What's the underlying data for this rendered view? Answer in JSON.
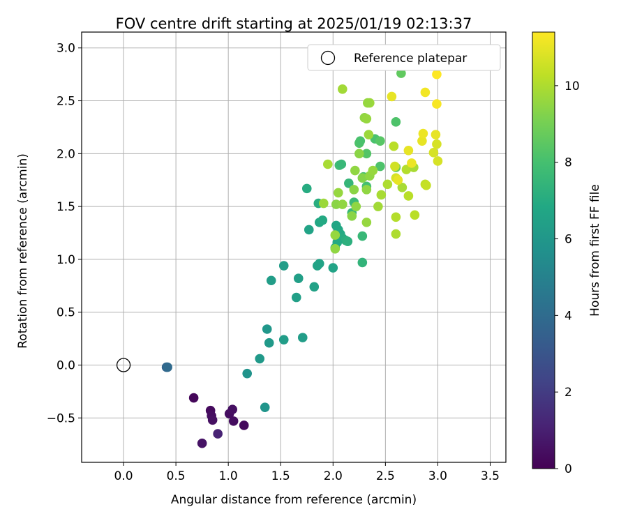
{
  "chart_data": {
    "type": "scatter",
    "title": "FOV centre drift starting at 2025/01/19 02:13:37",
    "xlabel": "Angular distance from reference (arcmin)",
    "ylabel": "Rotation from reference (arcmin)",
    "xlim": [
      -0.4,
      3.65
    ],
    "ylim": [
      -0.92,
      3.15
    ],
    "xticks": [
      "0.0",
      "0.5",
      "1.0",
      "1.5",
      "2.0",
      "2.5",
      "3.0",
      "3.5"
    ],
    "yticks": [
      "−0.5",
      "0.0",
      "0.5",
      "1.0",
      "1.5",
      "2.0",
      "2.5",
      "3.0"
    ],
    "grid": true,
    "legend": {
      "placement": "upper right",
      "label": "Reference platepar"
    },
    "reference_point": {
      "x": 0.0,
      "y": 0.0
    },
    "colorbar": {
      "label": "Hours from first FF file",
      "range": [
        0,
        11.4
      ],
      "ticks": [
        "0",
        "2",
        "4",
        "6",
        "8",
        "10"
      ],
      "colormap": "viridis"
    },
    "points": [
      {
        "x": 0.41,
        "y": -0.02,
        "h": 3.6
      },
      {
        "x": 0.42,
        "y": -0.02,
        "h": 3.9
      },
      {
        "x": 0.67,
        "y": -0.31,
        "h": 0.2
      },
      {
        "x": 0.83,
        "y": -0.43,
        "h": 0.3
      },
      {
        "x": 0.84,
        "y": -0.48,
        "h": 0.4
      },
      {
        "x": 0.85,
        "y": -0.52,
        "h": 0.5
      },
      {
        "x": 0.75,
        "y": -0.74,
        "h": 0.6
      },
      {
        "x": 0.9,
        "y": -0.65,
        "h": 1.1
      },
      {
        "x": 1.01,
        "y": -0.46,
        "h": 0.4
      },
      {
        "x": 1.04,
        "y": -0.42,
        "h": 0.5
      },
      {
        "x": 1.05,
        "y": -0.53,
        "h": 0.4
      },
      {
        "x": 1.15,
        "y": -0.57,
        "h": 0.3
      },
      {
        "x": 1.18,
        "y": -0.08,
        "h": 5.8
      },
      {
        "x": 1.35,
        "y": -0.4,
        "h": 5.9
      },
      {
        "x": 1.3,
        "y": 0.06,
        "h": 6.1
      },
      {
        "x": 1.37,
        "y": 0.34,
        "h": 6.0
      },
      {
        "x": 1.39,
        "y": 0.21,
        "h": 6.1
      },
      {
        "x": 1.53,
        "y": 0.24,
        "h": 6.3
      },
      {
        "x": 1.71,
        "y": 0.26,
        "h": 6.3
      },
      {
        "x": 1.41,
        "y": 0.8,
        "h": 6.3
      },
      {
        "x": 1.53,
        "y": 0.94,
        "h": 6.3
      },
      {
        "x": 1.65,
        "y": 0.64,
        "h": 6.4
      },
      {
        "x": 1.67,
        "y": 0.82,
        "h": 6.4
      },
      {
        "x": 1.82,
        "y": 0.74,
        "h": 6.5
      },
      {
        "x": 1.85,
        "y": 0.94,
        "h": 6.6
      },
      {
        "x": 1.87,
        "y": 0.96,
        "h": 6.6
      },
      {
        "x": 2.0,
        "y": 0.92,
        "h": 6.6
      },
      {
        "x": 1.77,
        "y": 1.28,
        "h": 6.6
      },
      {
        "x": 1.75,
        "y": 1.67,
        "h": 7.0
      },
      {
        "x": 1.86,
        "y": 1.53,
        "h": 7.1
      },
      {
        "x": 1.87,
        "y": 1.35,
        "h": 6.8
      },
      {
        "x": 1.9,
        "y": 1.37,
        "h": 6.9
      },
      {
        "x": 2.03,
        "y": 1.32,
        "h": 6.7
      },
      {
        "x": 2.05,
        "y": 1.28,
        "h": 6.8
      },
      {
        "x": 2.07,
        "y": 1.24,
        "h": 6.9
      },
      {
        "x": 2.09,
        "y": 1.2,
        "h": 7.0
      },
      {
        "x": 2.12,
        "y": 1.18,
        "h": 7.1
      },
      {
        "x": 2.14,
        "y": 1.17,
        "h": 7.2
      },
      {
        "x": 2.04,
        "y": 1.16,
        "h": 6.9
      },
      {
        "x": 2.02,
        "y": 1.11,
        "h": 7.0
      },
      {
        "x": 2.28,
        "y": 0.97,
        "h": 7.4
      },
      {
        "x": 2.28,
        "y": 1.22,
        "h": 7.6
      },
      {
        "x": 2.15,
        "y": 1.72,
        "h": 7.5
      },
      {
        "x": 2.18,
        "y": 1.44,
        "h": 7.6
      },
      {
        "x": 2.2,
        "y": 1.54,
        "h": 7.7
      },
      {
        "x": 2.06,
        "y": 1.89,
        "h": 7.8
      },
      {
        "x": 2.08,
        "y": 1.9,
        "h": 7.6
      },
      {
        "x": 2.25,
        "y": 2.1,
        "h": 8.2
      },
      {
        "x": 2.26,
        "y": 2.12,
        "h": 8.1
      },
      {
        "x": 2.29,
        "y": 1.78,
        "h": 8.0
      },
      {
        "x": 2.32,
        "y": 1.69,
        "h": 8.0
      },
      {
        "x": 2.32,
        "y": 2.0,
        "h": 8.3
      },
      {
        "x": 2.4,
        "y": 2.14,
        "h": 8.1
      },
      {
        "x": 2.45,
        "y": 1.88,
        "h": 8.2
      },
      {
        "x": 2.45,
        "y": 2.12,
        "h": 8.4
      },
      {
        "x": 2.6,
        "y": 2.3,
        "h": 8.2
      },
      {
        "x": 2.65,
        "y": 2.76,
        "h": 8.6
      },
      {
        "x": 2.6,
        "y": 1.87,
        "h": 8.7
      },
      {
        "x": 2.02,
        "y": 1.23,
        "h": 9.6
      },
      {
        "x": 2.02,
        "y": 1.1,
        "h": 9.5
      },
      {
        "x": 2.03,
        "y": 1.52,
        "h": 9.4
      },
      {
        "x": 2.05,
        "y": 1.63,
        "h": 9.6
      },
      {
        "x": 2.09,
        "y": 1.52,
        "h": 9.5
      },
      {
        "x": 2.18,
        "y": 1.41,
        "h": 9.4
      },
      {
        "x": 2.22,
        "y": 1.5,
        "h": 9.5
      },
      {
        "x": 2.2,
        "y": 1.66,
        "h": 9.4
      },
      {
        "x": 2.21,
        "y": 1.84,
        "h": 9.5
      },
      {
        "x": 2.25,
        "y": 2.0,
        "h": 9.4
      },
      {
        "x": 2.28,
        "y": 1.77,
        "h": 9.3
      },
      {
        "x": 2.32,
        "y": 1.66,
        "h": 9.5
      },
      {
        "x": 2.32,
        "y": 1.35,
        "h": 9.6
      },
      {
        "x": 2.35,
        "y": 1.79,
        "h": 9.5
      },
      {
        "x": 2.38,
        "y": 1.84,
        "h": 9.6
      },
      {
        "x": 2.34,
        "y": 2.18,
        "h": 9.7
      },
      {
        "x": 2.35,
        "y": 2.48,
        "h": 9.7
      },
      {
        "x": 2.33,
        "y": 2.48,
        "h": 9.6
      },
      {
        "x": 2.3,
        "y": 2.34,
        "h": 9.5
      },
      {
        "x": 2.32,
        "y": 2.33,
        "h": 9.6
      },
      {
        "x": 2.09,
        "y": 2.61,
        "h": 9.8
      },
      {
        "x": 1.95,
        "y": 1.9,
        "h": 9.9
      },
      {
        "x": 1.91,
        "y": 1.53,
        "h": 9.7
      },
      {
        "x": 2.43,
        "y": 1.5,
        "h": 9.8
      },
      {
        "x": 2.46,
        "y": 1.61,
        "h": 9.9
      },
      {
        "x": 2.52,
        "y": 1.71,
        "h": 10.0
      },
      {
        "x": 2.58,
        "y": 2.07,
        "h": 10.2
      },
      {
        "x": 2.6,
        "y": 1.4,
        "h": 10.1
      },
      {
        "x": 2.6,
        "y": 1.24,
        "h": 10.0
      },
      {
        "x": 2.66,
        "y": 1.68,
        "h": 9.9
      },
      {
        "x": 2.7,
        "y": 1.85,
        "h": 10.1
      },
      {
        "x": 2.72,
        "y": 1.6,
        "h": 10.2
      },
      {
        "x": 2.77,
        "y": 1.87,
        "h": 9.9
      },
      {
        "x": 2.78,
        "y": 1.42,
        "h": 10.2
      },
      {
        "x": 2.88,
        "y": 1.71,
        "h": 10.3
      },
      {
        "x": 2.89,
        "y": 1.7,
        "h": 10.4
      },
      {
        "x": 2.59,
        "y": 1.88,
        "h": 10.6
      },
      {
        "x": 2.6,
        "y": 1.77,
        "h": 10.7
      },
      {
        "x": 2.62,
        "y": 1.75,
        "h": 11.0
      },
      {
        "x": 2.72,
        "y": 2.03,
        "h": 11.0
      },
      {
        "x": 2.75,
        "y": 1.91,
        "h": 11.1
      },
      {
        "x": 2.56,
        "y": 2.54,
        "h": 11.0
      },
      {
        "x": 2.85,
        "y": 2.12,
        "h": 11.0
      },
      {
        "x": 2.86,
        "y": 2.19,
        "h": 11.1
      },
      {
        "x": 2.88,
        "y": 2.58,
        "h": 11.2
      },
      {
        "x": 2.96,
        "y": 2.01,
        "h": 10.7
      },
      {
        "x": 2.98,
        "y": 2.18,
        "h": 11.0
      },
      {
        "x": 2.99,
        "y": 2.09,
        "h": 10.7
      },
      {
        "x": 3.0,
        "y": 1.93,
        "h": 10.7
      },
      {
        "x": 2.99,
        "y": 2.47,
        "h": 11.3
      },
      {
        "x": 2.99,
        "y": 2.75,
        "h": 11.4
      }
    ]
  }
}
